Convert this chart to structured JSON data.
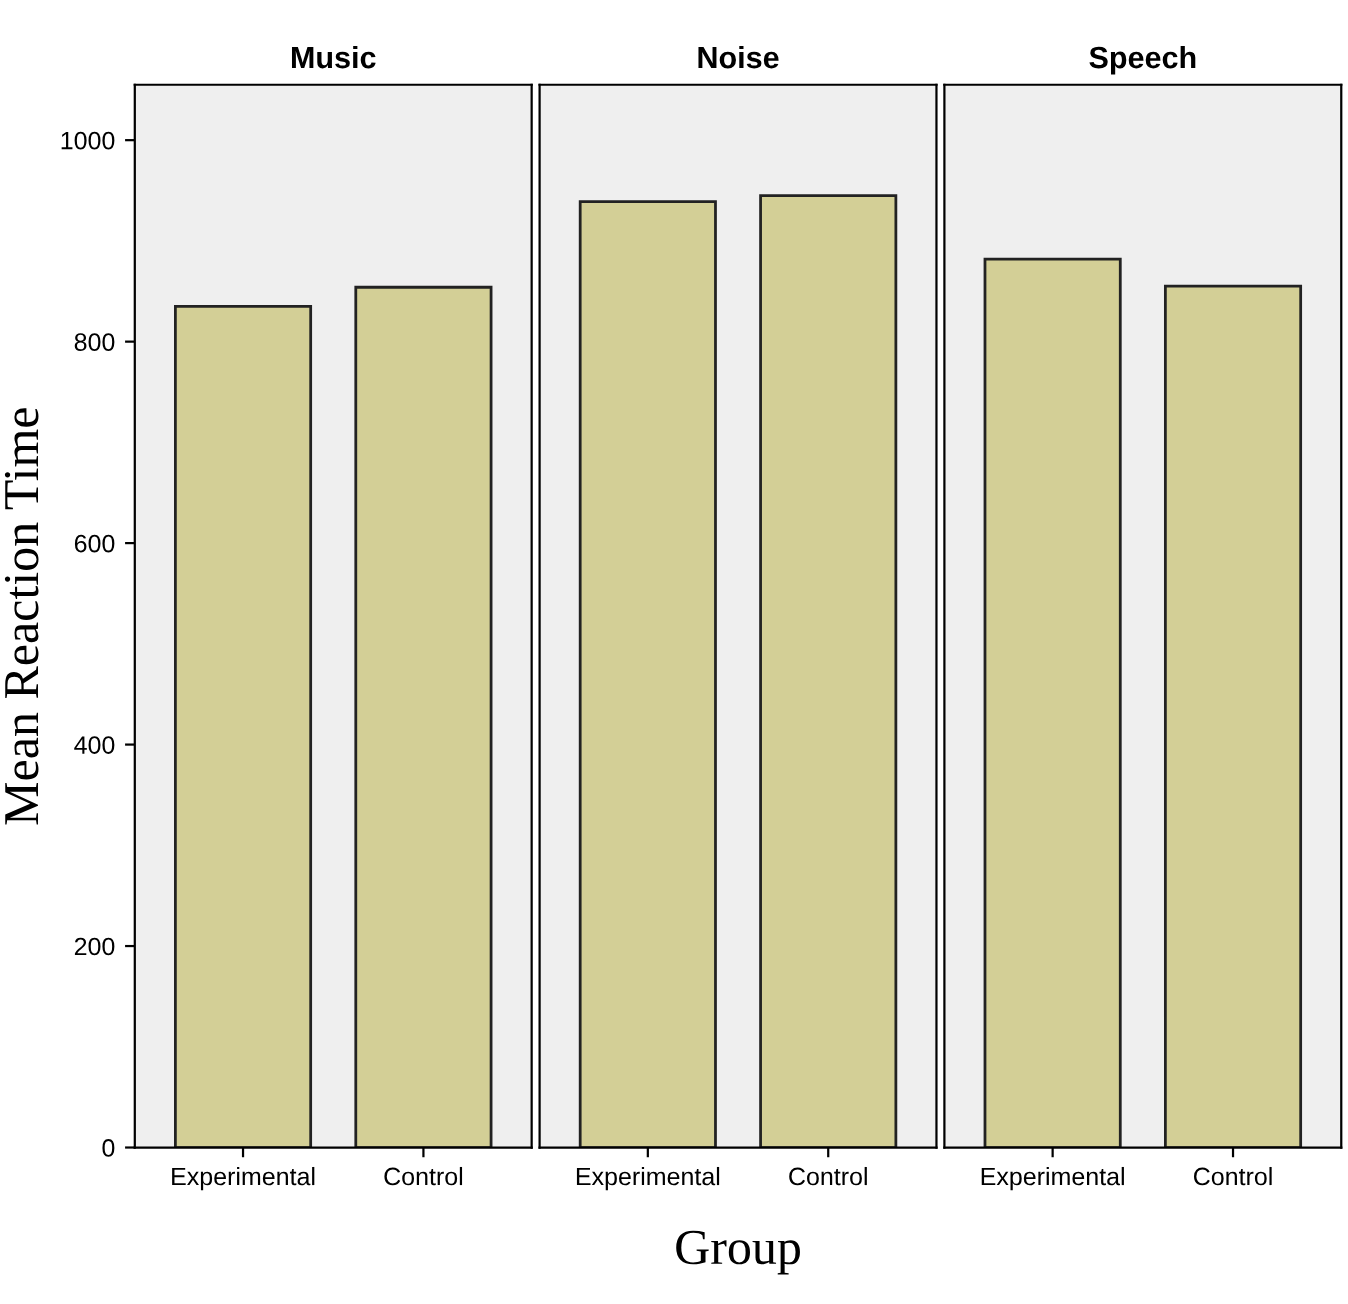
{
  "chart_data": [
    {
      "type": "bar",
      "title": "Music",
      "ylabel": "Mean Reaction Time",
      "categories": [
        "Experimental",
        "Control"
      ],
      "values": [
        835,
        854
      ],
      "color": "#d3cf96",
      "ylim": [
        0,
        1055
      ],
      "yticks": [
        0,
        200,
        400,
        600,
        800,
        1000
      ],
      "grid": false,
      "legend": false
    },
    {
      "type": "bar",
      "title": "Noise",
      "xlabel": "Group",
      "categories": [
        "Experimental",
        "Control"
      ],
      "values": [
        939,
        945
      ],
      "color": "#d3cf96",
      "ylim": [
        0,
        1055
      ],
      "tick_labels": "x",
      "grid": false,
      "legend": false
    },
    {
      "type": "bar",
      "title": "Speech",
      "categories": [
        "Experimental",
        "Control"
      ],
      "values": [
        882,
        855
      ],
      "color": "#d3cf96",
      "ylim": [
        0,
        1055
      ],
      "tick_labels": "x",
      "grid": false,
      "legend": false
    }
  ]
}
